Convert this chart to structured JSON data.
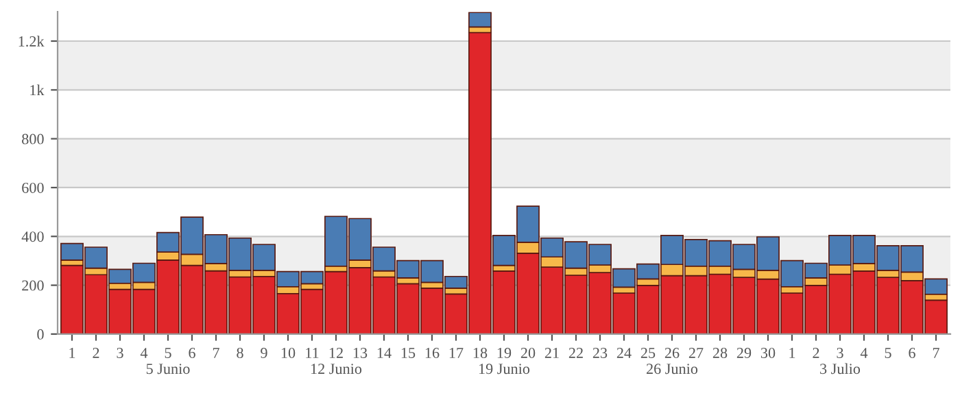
{
  "chart_data": {
    "type": "bar",
    "stacked": true,
    "categories": [
      "1",
      "2",
      "3",
      "4",
      "5\n5 Junio",
      "6",
      "7",
      "8",
      "9",
      "10",
      "11",
      "12\n12 Junio",
      "13",
      "14",
      "15",
      "16",
      "17",
      "18",
      "19\n19 Junio",
      "20",
      "21",
      "22",
      "23",
      "24",
      "25",
      "26\n26 Junio",
      "27",
      "28",
      "29",
      "30",
      "1",
      "2",
      "3\n3 Julio",
      "4",
      "5",
      "6",
      "7"
    ],
    "series": [
      {
        "color": "#e0262a",
        "values": [
          281,
          243,
          183,
          183,
          303,
          281,
          259,
          234,
          236,
          166,
          183,
          256,
          272,
          234,
          206,
          188,
          164,
          1235,
          258,
          331,
          274,
          241,
          252,
          168,
          199,
          239,
          239,
          245,
          232,
          225,
          168,
          199,
          245,
          258,
          232,
          219,
          139
        ]
      },
      {
        "color": "#f7b84a",
        "values": [
          22,
          27,
          25,
          29,
          33,
          46,
          30,
          27,
          25,
          28,
          23,
          22,
          31,
          25,
          24,
          24,
          24,
          23,
          23,
          45,
          42,
          29,
          31,
          24,
          27,
          46,
          39,
          33,
          33,
          36,
          26,
          31,
          38,
          31,
          29,
          35,
          24
        ]
      },
      {
        "color": "#4a7cb4",
        "values": [
          68,
          86,
          57,
          78,
          80,
          152,
          118,
          132,
          106,
          62,
          50,
          204,
          170,
          97,
          71,
          89,
          48,
          59,
          123,
          148,
          77,
          108,
          84,
          75,
          61,
          119,
          109,
          104,
          102,
          137,
          107,
          60,
          121,
          115,
          101,
          108,
          63
        ]
      }
    ],
    "ylim": [
      0,
      1320
    ],
    "yticks": [
      0,
      200,
      400,
      600,
      800,
      {
        "value": 1000,
        "label": "1k"
      },
      {
        "value": 1200,
        "label": "1.2k"
      }
    ],
    "grid": "y"
  }
}
